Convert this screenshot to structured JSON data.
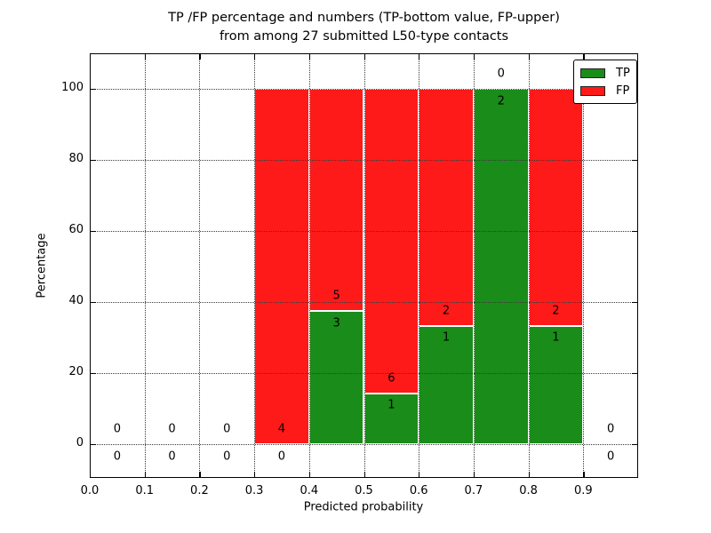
{
  "figure": {
    "title_line1": "TP /FP percentage and numbers (TP-bottom value, FP-upper)",
    "title_line2": "from among 27 submitted L50-type contacts",
    "background": "#ffffff"
  },
  "chart_data": {
    "type": "bar",
    "stacked": true,
    "title": "TP /FP percentage and numbers (TP-bottom value, FP-upper)\nfrom among 27 submitted L50-type contacts",
    "xlabel": "Predicted probability",
    "ylabel": "Percentage",
    "xlim": [
      0.0,
      1.0
    ],
    "ylim": [
      -10,
      110
    ],
    "grid": true,
    "legend_position": "upper right",
    "total_contacts": 27,
    "xticks": [
      "0.0",
      "0.1",
      "0.2",
      "0.3",
      "0.4",
      "0.5",
      "0.6",
      "0.7",
      "0.8",
      "0.9"
    ],
    "yticks": [
      "0",
      "20",
      "40",
      "60",
      "80",
      "100"
    ],
    "bin_edges": [
      0.0,
      0.1,
      0.2,
      0.3,
      0.4,
      0.5,
      0.6,
      0.7,
      0.8,
      0.9,
      1.0
    ],
    "series": [
      {
        "name": "TP",
        "color": "#1a8c1a",
        "counts": [
          0,
          0,
          0,
          0,
          3,
          1,
          1,
          2,
          1,
          0
        ],
        "pct": [
          0,
          0,
          0,
          0,
          37.5,
          14.29,
          33.33,
          100,
          33.33,
          0
        ]
      },
      {
        "name": "FP",
        "color": "#ff1a1a",
        "counts": [
          0,
          0,
          0,
          4,
          5,
          6,
          2,
          0,
          2,
          0
        ],
        "pct": [
          0,
          0,
          0,
          100,
          62.5,
          85.71,
          66.67,
          0,
          66.67,
          0
        ]
      }
    ],
    "annotation_note": "TP count shown below green top, FP count shown above green top"
  },
  "legend": {
    "items": [
      {
        "label": "TP",
        "color": "#1a8c1a"
      },
      {
        "label": "FP",
        "color": "#ff1a1a"
      }
    ]
  }
}
